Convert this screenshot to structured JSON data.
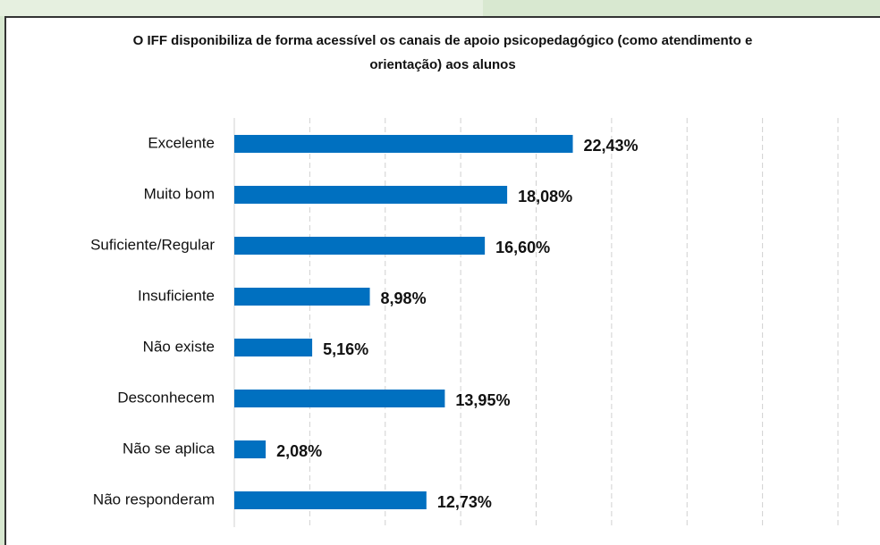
{
  "chart_data": {
    "type": "bar",
    "orientation": "horizontal",
    "title": "O IFF disponibiliza de forma acessível os canais de apoio psicopedagógico (como atendimento e orientação) aos alunos",
    "categories": [
      "Excelente",
      "Muito bom",
      "Suficiente/Regular",
      "Insuficiente",
      "Não existe",
      "Desconhecem",
      "Não se aplica",
      "Não responderam"
    ],
    "values": [
      22.43,
      18.08,
      16.6,
      8.98,
      5.16,
      13.95,
      2.08,
      12.73
    ],
    "value_labels": [
      "22,43%",
      "18,08%",
      "16,60%",
      "8,98%",
      "5,16%",
      "13,95%",
      "2,08%",
      "12,73%"
    ],
    "color": "#0070c0",
    "xlim": [
      0,
      40
    ],
    "xticks": [
      0,
      5,
      10,
      15,
      20,
      25,
      30,
      35,
      40
    ],
    "grid": true
  }
}
